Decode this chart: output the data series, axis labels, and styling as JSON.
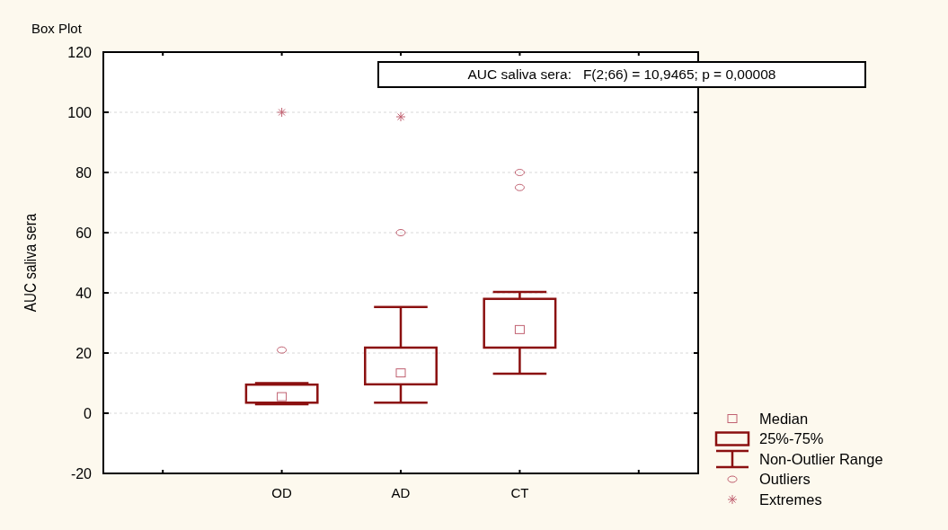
{
  "chart_data": {
    "type": "box",
    "title": "Box Plot",
    "ylabel": "AUC saliva sera",
    "categories": [
      "OD",
      "AD",
      "CT"
    ],
    "ylim": [
      -20,
      120
    ],
    "yticks": [
      -20,
      0,
      20,
      40,
      60,
      80,
      100,
      120
    ],
    "grid": "y",
    "legend": "bottom right",
    "annotations": [
      "AUC saliva sera:   F(2;66) = 10,9465; p = 0,00008",
      "Median",
      "25%-75%",
      "Non-Outlier Range"
    ],
    "series": [
      {
        "color": "#8b1010",
        "boxes": [
          {
            "low": 3,
            "q1": 3.5,
            "median": 5.5,
            "q3": 9.5,
            "high": 10
          },
          {
            "low": 3.5,
            "q1": 9.6,
            "median": 13.4,
            "q3": 21.8,
            "high": 35.3
          },
          {
            "low": 13.1,
            "q1": 21.8,
            "median": 27.8,
            "q3": 38,
            "high": 40.3
          }
        ]
      },
      {
        "type": "scatter",
        "name": "Outliers",
        "color": "#c06070",
        "marker": "circle",
        "x": [
          "OD",
          "AD",
          "CT",
          "CT"
        ],
        "values": [
          21,
          60,
          80,
          75
        ]
      },
      {
        "type": "scatter",
        "name": "Extremes",
        "color": "#c06070",
        "marker": "cross",
        "x": [
          "OD",
          "AD"
        ],
        "values": [
          100,
          98.5
        ]
      }
    ]
  }
}
